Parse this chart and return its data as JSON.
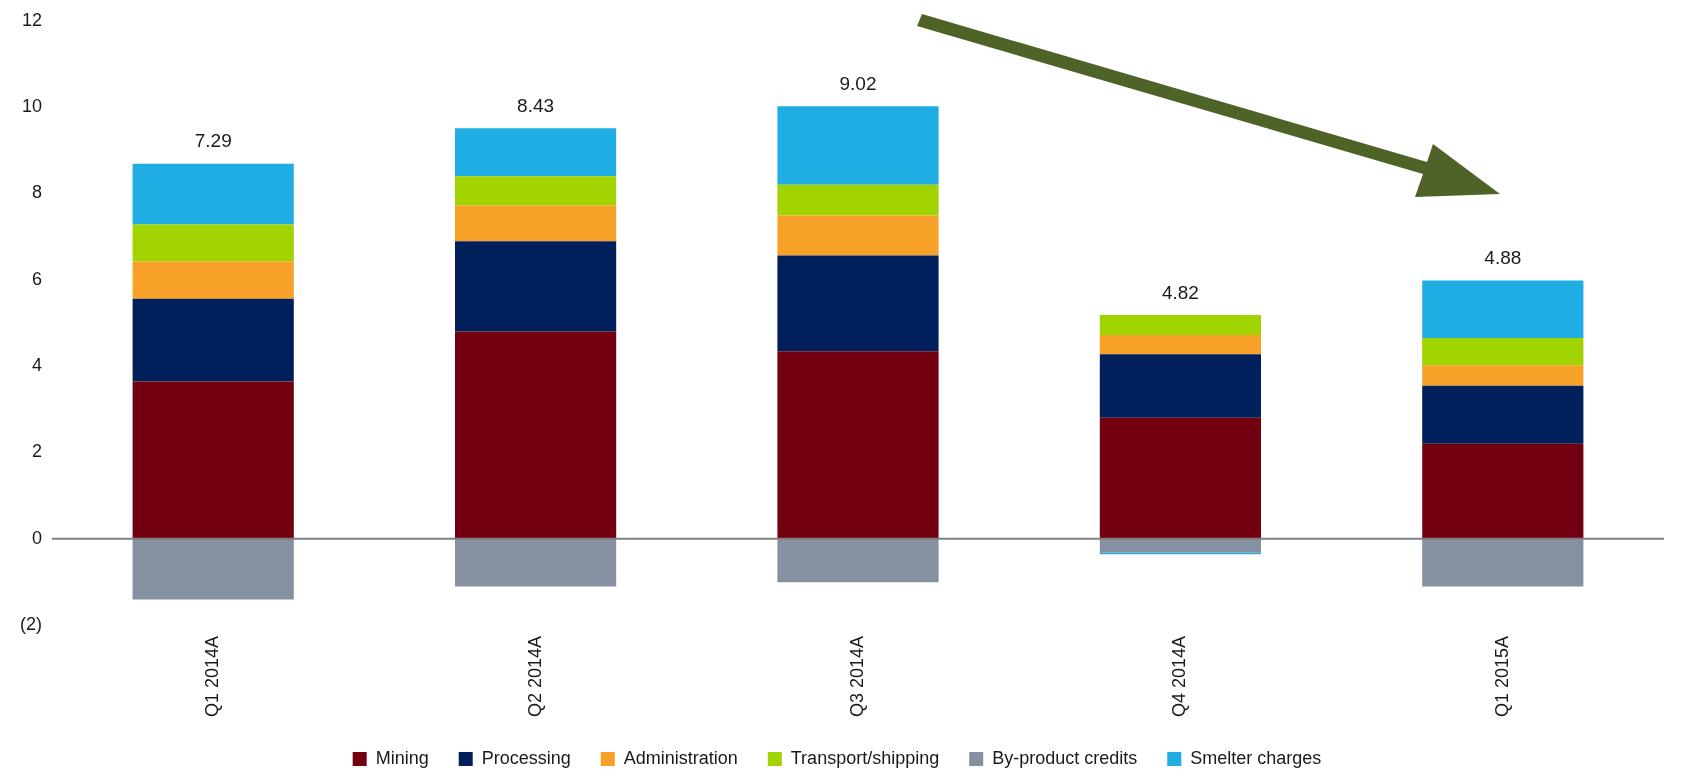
{
  "chart_data": {
    "type": "bar",
    "stacked": true,
    "categories": [
      "Q1 2014A",
      "Q2 2014A",
      "Q3 2014A",
      "Q4 2014A",
      "Q1 2015A"
    ],
    "series": [
      {
        "name": "Mining",
        "color": "#720010",
        "values": [
          3.64,
          4.8,
          4.34,
          2.8,
          2.2
        ]
      },
      {
        "name": "Processing",
        "color": "#00205b",
        "values": [
          1.92,
          2.09,
          2.22,
          1.47,
          1.34
        ]
      },
      {
        "name": "Administration",
        "color": "#f7a128",
        "values": [
          0.86,
          0.83,
          0.93,
          0.45,
          0.48
        ]
      },
      {
        "name": "Transport/shipping",
        "color": "#a1d300",
        "values": [
          0.86,
          0.68,
          0.71,
          0.46,
          0.63
        ]
      },
      {
        "name": "By-product credits",
        "color": "#8591a0",
        "values": [
          -1.41,
          -1.11,
          -1.01,
          -0.33,
          -1.11
        ]
      },
      {
        "name": "Smelter charges",
        "color": "#1fade3",
        "values": [
          1.41,
          1.11,
          1.82,
          -0.03,
          1.33
        ]
      }
    ],
    "totals": [
      "7.29",
      "8.43",
      "9.02",
      "4.82",
      "4.88"
    ],
    "ylim": [
      -2,
      12
    ],
    "yticks": [
      {
        "value": -2,
        "label": "(2)"
      },
      0,
      2,
      4,
      6,
      8,
      10,
      12
    ],
    "ref_lines": [
      {
        "axis": "y",
        "value": 0,
        "color": "#808080"
      }
    ],
    "grid": false,
    "legend": "bottom"
  }
}
